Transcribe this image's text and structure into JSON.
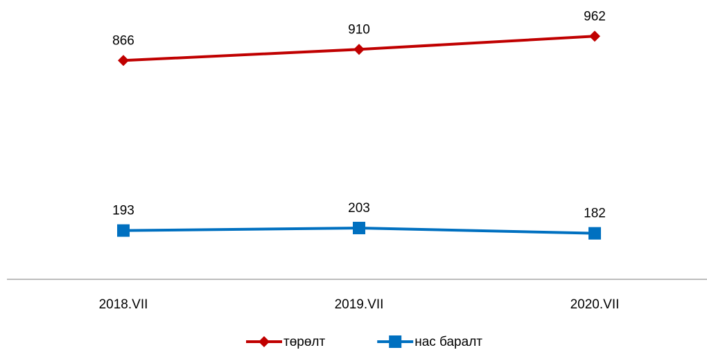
{
  "chart_data": {
    "type": "line",
    "categories": [
      "2018.VII",
      "2019.VII",
      "2020.VII"
    ],
    "series": [
      {
        "name": "төрөлт",
        "color": "#c00000",
        "marker": "diamond",
        "values": [
          866,
          910,
          962
        ]
      },
      {
        "name": "нас баралт",
        "color": "#0070c0",
        "marker": "square",
        "values": [
          193,
          203,
          182
        ]
      }
    ],
    "ylim": [
      0,
      1100
    ],
    "grid": false,
    "legend": "bottom"
  }
}
